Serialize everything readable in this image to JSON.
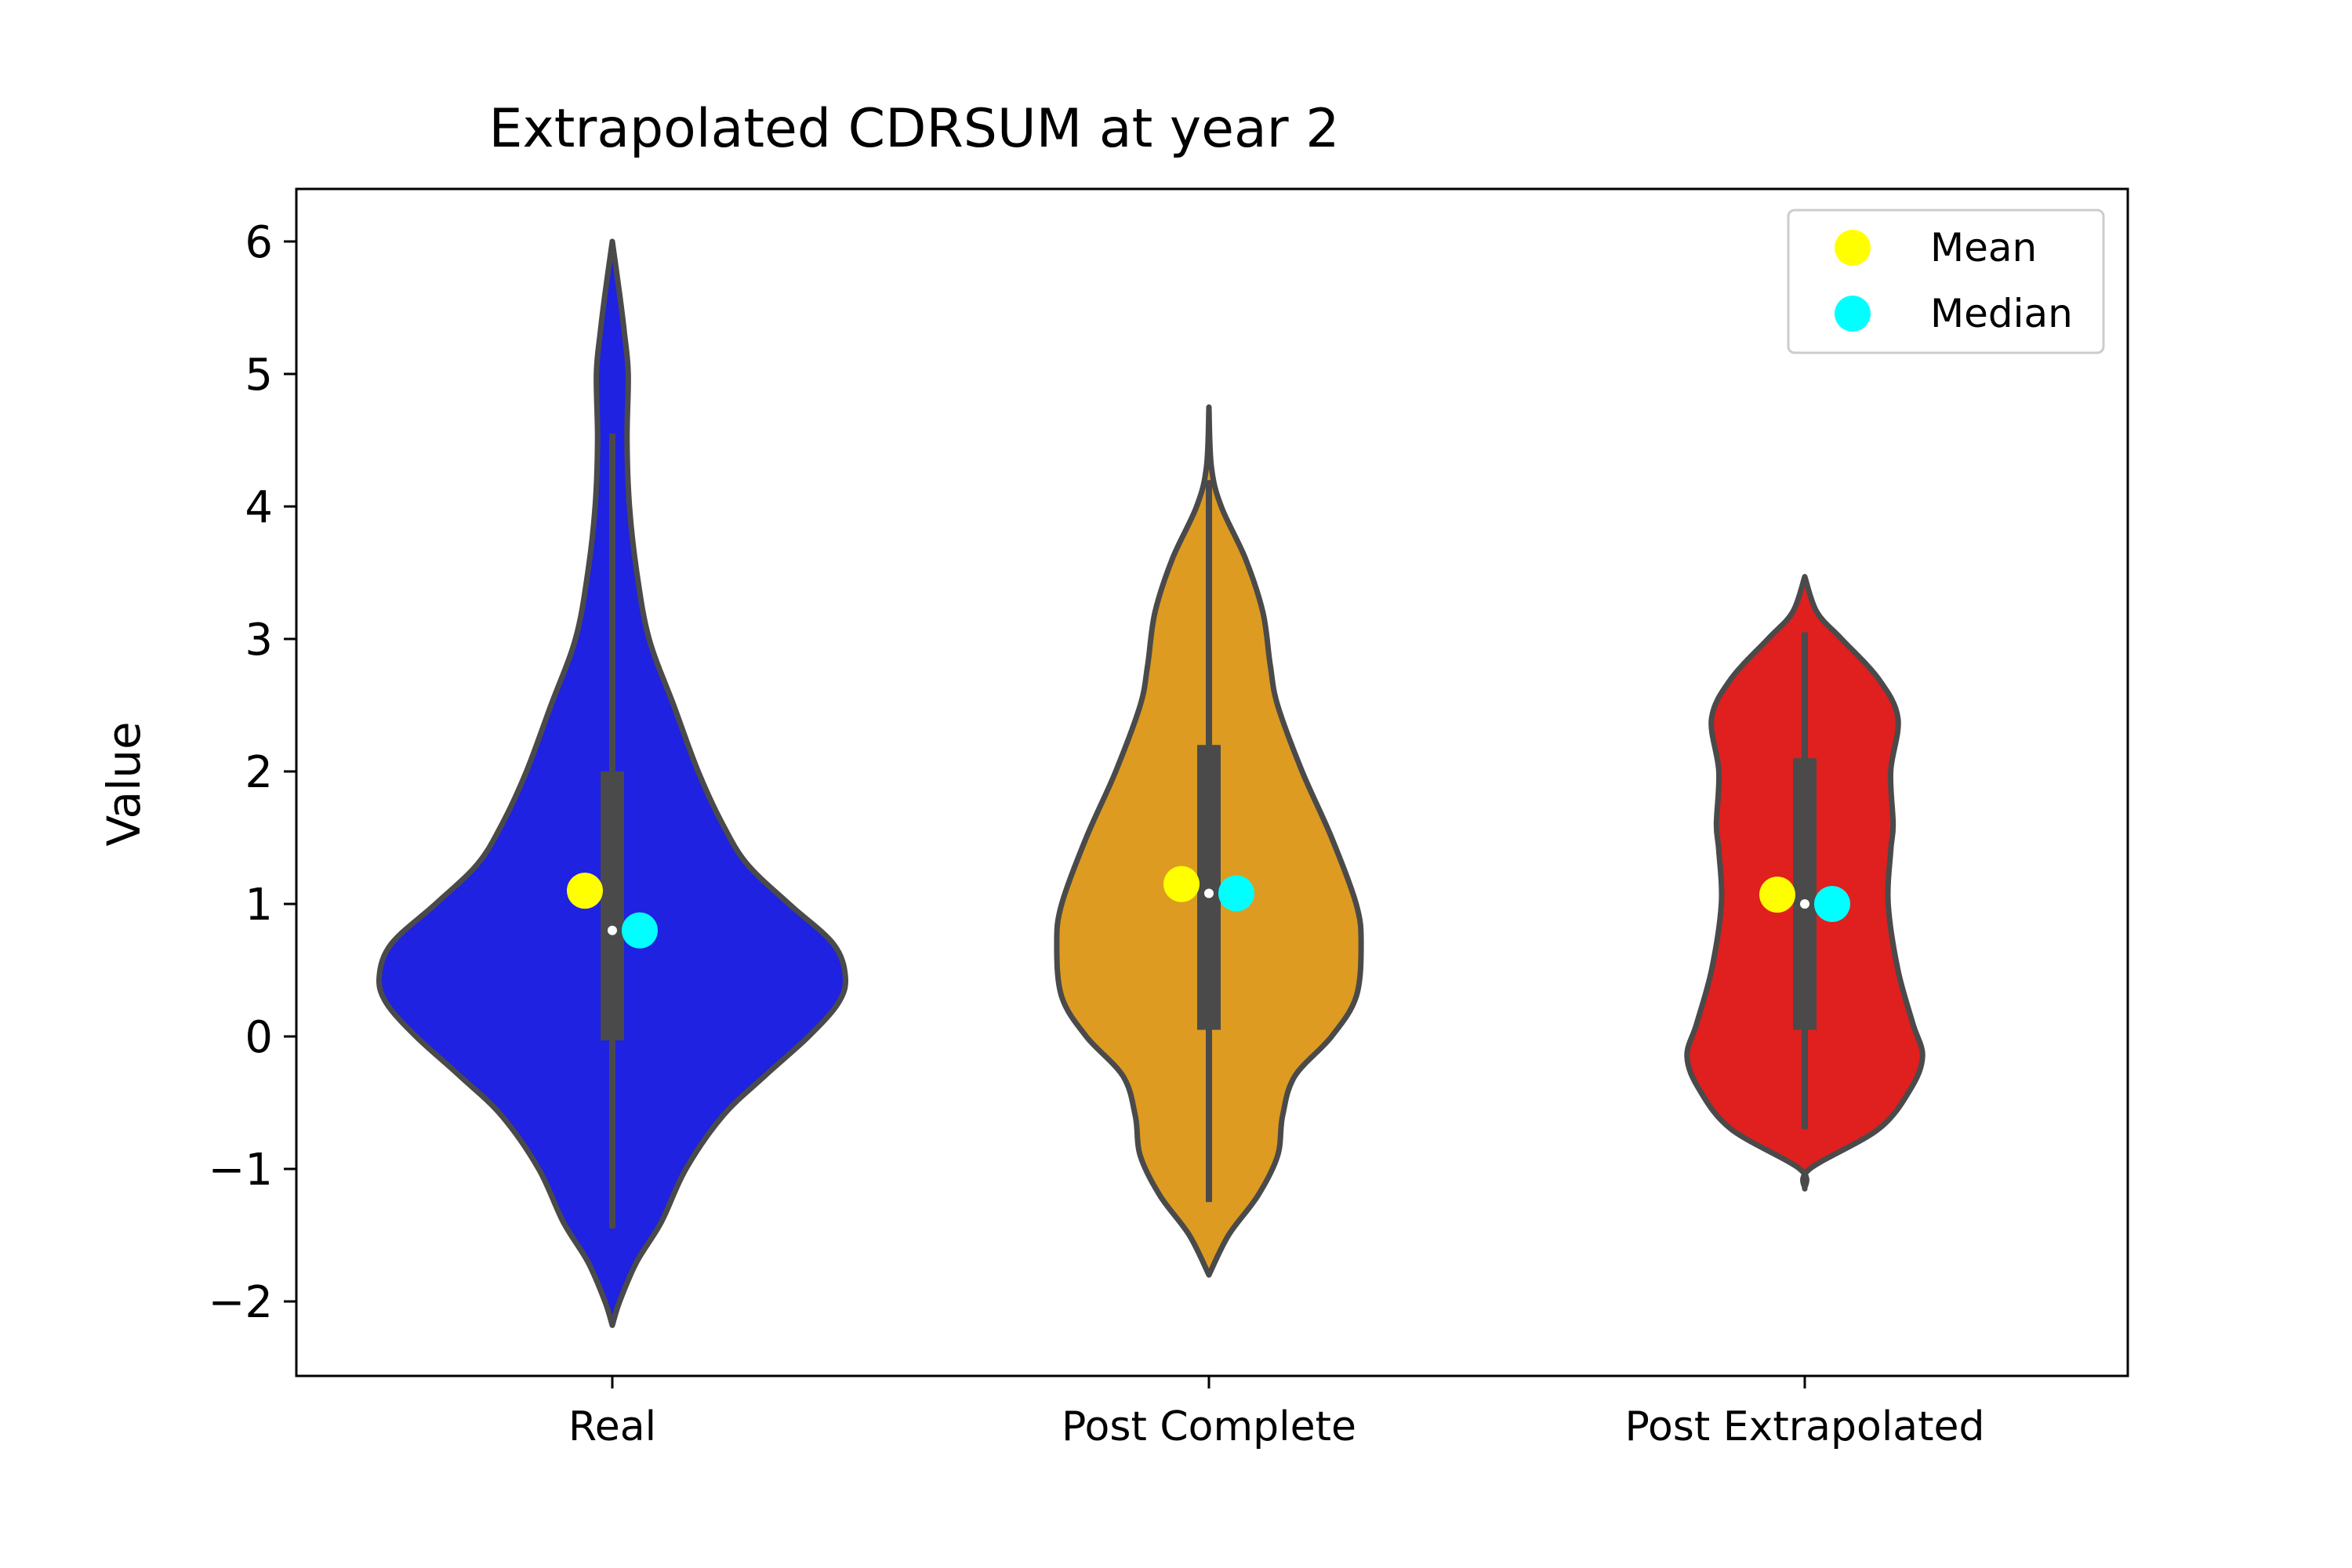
{
  "chart_data": {
    "type": "violin",
    "title": "Extrapolated CDRSUM at year 2",
    "xlabel": "",
    "ylabel": "Value",
    "ylim": [
      -2.55,
      6.4
    ],
    "yticks": [
      -2,
      -1,
      0,
      1,
      2,
      3,
      4,
      5,
      6
    ],
    "ytick_labels": [
      "−2",
      "−1",
      "0",
      "1",
      "2",
      "3",
      "4",
      "5",
      "6"
    ],
    "categories": [
      "Real",
      "Post Complete",
      "Post Extrapolated"
    ],
    "grid": false,
    "legend": {
      "position": "top-right",
      "entries": [
        {
          "label": "Mean",
          "color": "#ffff00"
        },
        {
          "label": "Median",
          "color": "#00ffff"
        }
      ]
    },
    "series": [
      {
        "category": "Real",
        "color": "#1f22e0",
        "min": -1.45,
        "q1": -0.03,
        "median": 0.8,
        "q3": 2.0,
        "max": 4.55,
        "mean": 1.1,
        "kde_extent": [
          -2.18,
          6.0
        ],
        "profile": [
          [
            -2.18,
            0.0
          ],
          [
            -2.0,
            0.03
          ],
          [
            -1.7,
            0.1
          ],
          [
            -1.4,
            0.2
          ],
          [
            -1.0,
            0.3
          ],
          [
            -0.6,
            0.45
          ],
          [
            -0.3,
            0.62
          ],
          [
            0.0,
            0.8
          ],
          [
            0.25,
            0.92
          ],
          [
            0.45,
            0.95
          ],
          [
            0.7,
            0.9
          ],
          [
            1.0,
            0.72
          ],
          [
            1.3,
            0.55
          ],
          [
            1.6,
            0.45
          ],
          [
            2.0,
            0.35
          ],
          [
            2.5,
            0.25
          ],
          [
            3.0,
            0.15
          ],
          [
            3.5,
            0.1
          ],
          [
            4.0,
            0.07
          ],
          [
            4.5,
            0.06
          ],
          [
            5.0,
            0.065
          ],
          [
            5.3,
            0.05
          ],
          [
            5.6,
            0.03
          ],
          [
            6.0,
            0.0
          ]
        ]
      },
      {
        "category": "Post Complete",
        "color": "#dd9b22",
        "min": -1.25,
        "q1": 0.05,
        "median": 1.08,
        "q3": 2.2,
        "max": 4.2,
        "mean": 1.15,
        "kde_extent": [
          -1.8,
          4.75
        ],
        "profile": [
          [
            -1.8,
            0.0
          ],
          [
            -1.5,
            0.08
          ],
          [
            -1.2,
            0.2
          ],
          [
            -0.9,
            0.28
          ],
          [
            -0.6,
            0.3
          ],
          [
            -0.3,
            0.35
          ],
          [
            0.0,
            0.5
          ],
          [
            0.3,
            0.6
          ],
          [
            0.7,
            0.62
          ],
          [
            1.0,
            0.6
          ],
          [
            1.5,
            0.5
          ],
          [
            2.0,
            0.38
          ],
          [
            2.5,
            0.28
          ],
          [
            2.8,
            0.25
          ],
          [
            3.2,
            0.22
          ],
          [
            3.6,
            0.15
          ],
          [
            4.0,
            0.05
          ],
          [
            4.3,
            0.01
          ],
          [
            4.75,
            0.0
          ]
        ]
      },
      {
        "category": "Post Extrapolated",
        "color": "#e01f1f",
        "min": -0.7,
        "q1": 0.05,
        "median": 1.0,
        "q3": 2.1,
        "max": 3.05,
        "mean": 1.07,
        "kde_extent": [
          -1.15,
          3.47
        ],
        "profile": [
          [
            -1.15,
            0.0
          ],
          [
            -1.0,
            0.02
          ],
          [
            -0.7,
            0.3
          ],
          [
            -0.4,
            0.43
          ],
          [
            -0.15,
            0.48
          ],
          [
            0.1,
            0.44
          ],
          [
            0.5,
            0.38
          ],
          [
            1.0,
            0.34
          ],
          [
            1.4,
            0.35
          ],
          [
            1.6,
            0.36
          ],
          [
            2.0,
            0.35
          ],
          [
            2.4,
            0.38
          ],
          [
            2.7,
            0.3
          ],
          [
            3.0,
            0.15
          ],
          [
            3.2,
            0.05
          ],
          [
            3.47,
            0.0
          ]
        ]
      }
    ]
  }
}
